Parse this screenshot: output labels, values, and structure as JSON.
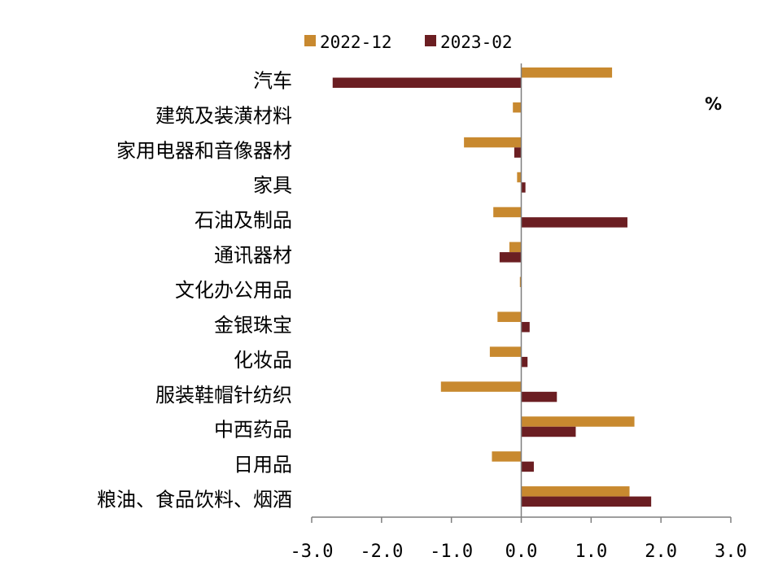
{
  "chart_data": {
    "type": "bar",
    "orientation": "horizontal",
    "unit": "%",
    "categories": [
      "汽车",
      "建筑及装潢材料",
      "家用电器和音像器材",
      "家具",
      "石油及制品",
      "通讯器材",
      "文化办公用品",
      "金银珠宝",
      "化妆品",
      "服装鞋帽针纺织",
      "中西药品",
      "日用品",
      "粮油、食品饮料、烟酒"
    ],
    "series": [
      {
        "name": "2022-12",
        "color": "#C8892F",
        "values": [
          1.3,
          -0.12,
          -0.82,
          -0.06,
          -0.4,
          -0.17,
          -0.02,
          -0.34,
          -0.45,
          -1.15,
          1.62,
          -0.42,
          1.55
        ]
      },
      {
        "name": "2023-02",
        "color": "#6B1E22",
        "values": [
          -2.7,
          0.0,
          -0.1,
          0.06,
          1.52,
          -0.31,
          0.0,
          0.12,
          0.09,
          0.51,
          0.78,
          0.18,
          1.86
        ]
      }
    ],
    "xlim": [
      -3.0,
      3.0
    ],
    "xticks": [
      "-3.0",
      "-2.0",
      "-1.0",
      "0.0",
      "1.0",
      "2.0",
      "3.0"
    ],
    "legend_position": "top",
    "grid": false
  }
}
